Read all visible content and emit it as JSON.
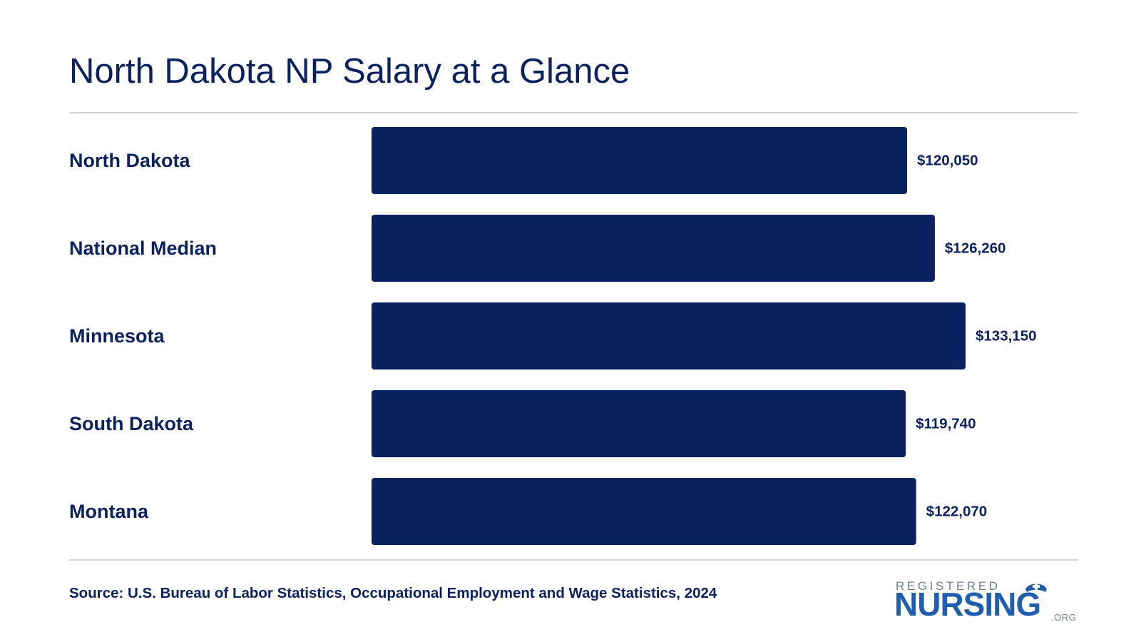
{
  "chart_data": {
    "type": "bar",
    "orientation": "horizontal",
    "title": "North Dakota NP Salary at a Glance",
    "categories": [
      "North Dakota",
      "National Median",
      "Minnesota",
      "South Dakota",
      "Montana"
    ],
    "values": [
      120050,
      126260,
      133150,
      119740,
      122070
    ],
    "value_labels": [
      "$120,050",
      "$126,260",
      "$133,150",
      "$119,740",
      "$122,070"
    ],
    "xlim": [
      0,
      133150
    ],
    "grid": false,
    "legend": "none",
    "bar_color": "#0b2260"
  },
  "footer": {
    "source": "Source: U.S. Bureau of Labor Statistics, Occupational Employment and Wage Statistics, 2024"
  },
  "logo": {
    "top_text": "REGISTERED",
    "main_text": "NURSING",
    "suffix": ".ORG"
  },
  "colors": {
    "text": "#0b2260",
    "logo_blue": "#1f5fb0",
    "logo_gray": "#6e7f93",
    "divider": "#d4d4d8"
  }
}
